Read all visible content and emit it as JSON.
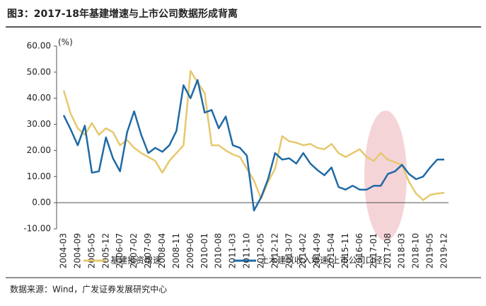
{
  "chart_data": {
    "type": "line",
    "title": "图3：2017-18年基建增速与上市公司数据形成背离",
    "y_unit": "(%)",
    "source": "数据来源：Wind，广发证券发展研究中心",
    "categories": [
      "2004-03",
      null,
      "2004-09",
      null,
      "2005-05",
      null,
      "2005-12",
      null,
      "2006-07",
      null,
      "2007-02",
      null,
      "2007-09",
      null,
      "2008-04",
      null,
      "2008-11",
      null,
      "2009-06",
      null,
      "2010-01",
      null,
      "2010-08",
      null,
      "2011-03",
      null,
      "2011-10",
      null,
      "2012-05",
      null,
      "2012-12",
      null,
      "2013-07",
      null,
      "2014-02",
      null,
      "2014-09",
      null,
      "2015-04",
      null,
      "2015-11",
      null,
      "2016-06",
      null,
      "2017-01",
      null,
      "2017-08",
      null,
      "2018-03",
      null,
      "2018-10",
      null,
      "2019-05",
      null,
      "2019-12"
    ],
    "series": [
      {
        "name": "基建投资增速",
        "color": "#e6c86e",
        "values": [
          43,
          34,
          28.5,
          26,
          30.5,
          26,
          28.5,
          27,
          22,
          24,
          21,
          19,
          17.5,
          16,
          11.5,
          16,
          19,
          22,
          50.5,
          46,
          42,
          22,
          22,
          20,
          18.5,
          17.5,
          13,
          8.5,
          1.5,
          8,
          13,
          25.5,
          23.5,
          23,
          22,
          22.5,
          21,
          20.5,
          22.5,
          19,
          17.5,
          19,
          20.5,
          17.5,
          16,
          19,
          16.5,
          15.5,
          14.5,
          8,
          3.5,
          1,
          3,
          3.5,
          3.8
        ]
      },
      {
        "name": "土木建筑收入增速(上市公司口径)",
        "color": "#1f6aa5",
        "values": [
          33.5,
          28,
          22,
          29.5,
          11.5,
          12,
          25,
          17,
          12,
          27,
          35,
          26,
          19,
          21,
          19.5,
          22,
          27.5,
          45,
          40,
          47,
          34.5,
          35.5,
          28.5,
          33,
          22,
          21,
          18,
          -3,
          2,
          9,
          19,
          16.5,
          17,
          15,
          19,
          15,
          12.5,
          10.5,
          13.5,
          6,
          5,
          6.5,
          5,
          5,
          6.5,
          6.5,
          11,
          12,
          14.5,
          11,
          9,
          10,
          13.5,
          16.5,
          16.5
        ]
      }
    ],
    "ylim": [
      -10,
      60
    ],
    "yticks": [
      {
        "value": -10,
        "label": "-10.00"
      },
      {
        "value": 0,
        "label": "0.00"
      },
      {
        "value": 10,
        "label": "10.00"
      },
      {
        "value": 20,
        "label": "20.00"
      },
      {
        "value": 30,
        "label": "30.00"
      },
      {
        "value": 40,
        "label": "40.00"
      },
      {
        "value": 50,
        "label": "50.00"
      },
      {
        "value": 60,
        "label": "60.00"
      }
    ],
    "legend": "bottom"
  }
}
